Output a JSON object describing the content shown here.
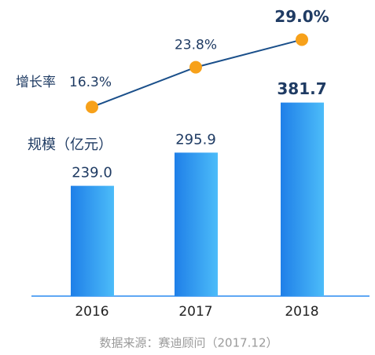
{
  "chart_data": {
    "type": "bar-line",
    "categories": [
      "2016",
      "2017",
      "2018"
    ],
    "series": [
      {
        "name": "规模（亿元）",
        "type": "bar",
        "color": "#2a8cf0",
        "values": [
          239.0,
          295.9,
          381.7
        ],
        "value_labels": [
          "239.0",
          "295.9",
          "381.7"
        ]
      },
      {
        "name": "增长率",
        "type": "line",
        "axis": "y2",
        "color": "#1a4f8a",
        "marker_color": "#f7a11a",
        "values": [
          16.3,
          23.8,
          29.0
        ],
        "value_labels": [
          "16.3%",
          "23.8%",
          "29.0%"
        ]
      }
    ],
    "ylim": [
      50,
      400
    ],
    "y2lim": [
      -5,
      35
    ],
    "source": "数据来源：赛迪顾问（2017.12）"
  }
}
